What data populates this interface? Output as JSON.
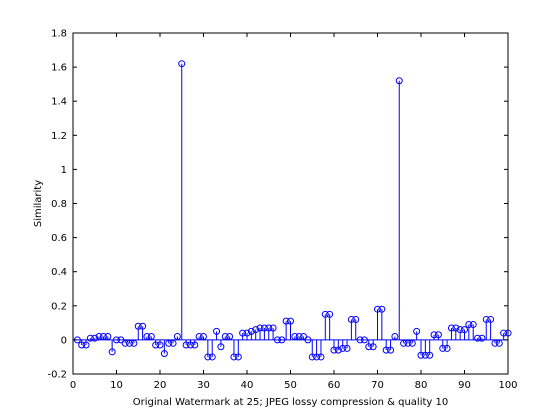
{
  "chart_data": {
    "type": "stem",
    "title": "",
    "xlabel": "Original Watermark at 25; JPEG lossy compression & quality 10",
    "ylabel": "Similarity",
    "xlim": [
      0,
      100
    ],
    "ylim": [
      -0.2,
      1.8
    ],
    "xticks": [
      "0",
      "10",
      "20",
      "30",
      "40",
      "50",
      "60",
      "70",
      "80",
      "90",
      "100"
    ],
    "yticks": [
      "-0.2",
      "0",
      "0.2",
      "0.4",
      "0.6",
      "0.8",
      "1",
      "1.2",
      "1.4",
      "1.6",
      "1.8"
    ],
    "grid": false,
    "legend": "none",
    "color": "#0000ff",
    "x": [
      1,
      2,
      3,
      4,
      5,
      6,
      7,
      8,
      9,
      10,
      11,
      12,
      13,
      14,
      15,
      16,
      17,
      18,
      19,
      20,
      21,
      22,
      23,
      24,
      25,
      26,
      27,
      28,
      29,
      30,
      31,
      32,
      33,
      34,
      35,
      36,
      37,
      38,
      39,
      40,
      41,
      42,
      43,
      44,
      45,
      46,
      47,
      48,
      49,
      50,
      51,
      52,
      53,
      54,
      55,
      56,
      57,
      58,
      59,
      60,
      61,
      62,
      63,
      64,
      65,
      66,
      67,
      68,
      69,
      70,
      71,
      72,
      73,
      74,
      75,
      76,
      77,
      78,
      79,
      80,
      81,
      82,
      83,
      84,
      85,
      86,
      87,
      88,
      89,
      90,
      91,
      92,
      93,
      94,
      95,
      96,
      97,
      98,
      99,
      100
    ],
    "values": [
      0.0,
      -0.03,
      -0.03,
      0.01,
      0.01,
      0.02,
      0.02,
      0.02,
      -0.07,
      0.0,
      0.0,
      -0.02,
      -0.02,
      -0.02,
      0.08,
      0.08,
      0.02,
      0.02,
      -0.03,
      -0.03,
      -0.08,
      -0.02,
      -0.02,
      0.02,
      1.62,
      -0.03,
      -0.03,
      -0.03,
      0.02,
      0.02,
      -0.1,
      -0.1,
      0.05,
      -0.04,
      0.02,
      0.02,
      -0.1,
      -0.1,
      0.04,
      0.04,
      0.05,
      0.06,
      0.07,
      0.07,
      0.07,
      0.07,
      0.0,
      0.0,
      0.11,
      0.11,
      0.02,
      0.02,
      0.02,
      0.0,
      -0.1,
      -0.1,
      -0.1,
      0.15,
      0.15,
      -0.06,
      -0.06,
      -0.05,
      -0.05,
      0.12,
      0.12,
      0.0,
      0.0,
      -0.04,
      -0.04,
      0.18,
      0.18,
      -0.06,
      -0.06,
      0.02,
      1.52,
      -0.02,
      -0.02,
      -0.02,
      0.05,
      -0.09,
      -0.09,
      -0.09,
      0.03,
      0.03,
      -0.05,
      -0.05,
      0.07,
      0.07,
      0.06,
      0.06,
      0.09,
      0.09,
      0.01,
      0.01,
      0.12,
      0.12,
      -0.02,
      -0.02,
      0.04,
      0.04
    ]
  }
}
